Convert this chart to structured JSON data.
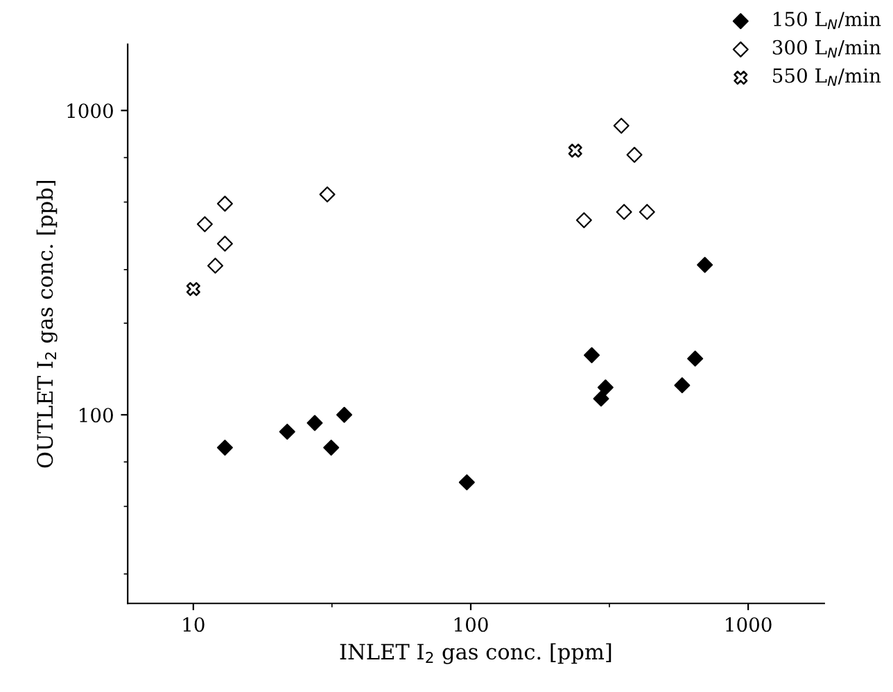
{
  "chart_data": {
    "type": "scatter",
    "xlabel": "INLET I$_{2}$ gas conc. [ppm]",
    "ylabel": "OUTLET I$_{2}$ gas conc. [ppb]",
    "log": "xy",
    "xlim": [
      5.8,
      1880
    ],
    "ylim": [
      24,
      1650
    ],
    "xticks": [
      10,
      100,
      1000
    ],
    "yticks": [
      100,
      1000
    ],
    "legend": "top right",
    "grid": false,
    "series": [
      {
        "name": "150 L$_{N}$/min",
        "marker": "diamond",
        "color": "#000000",
        "x": [
          13,
          21.8,
          27.4,
          31.4,
          35.0,
          96.8,
          698,
          273,
          644,
          306,
          295,
          578
        ],
        "values": [
          78,
          88,
          94,
          78,
          100,
          60,
          311,
          157,
          153,
          123,
          113,
          125
        ]
      },
      {
        "name": "300 L$_{N}$/min",
        "marker": "diamond",
        "color": "#ffffff",
        "x": [
          13,
          11.0,
          13,
          12.0,
          30.4,
          349,
          389,
          256,
          357,
          432
        ],
        "values": [
          494,
          423,
          365,
          309,
          530,
          891,
          715,
          436,
          464,
          464
        ]
      },
      {
        "name": "550 L$_{N}$/min",
        "marker": "cross",
        "color": "#000000",
        "x": [
          10,
          238
        ],
        "values": [
          259,
          738
        ]
      }
    ]
  }
}
